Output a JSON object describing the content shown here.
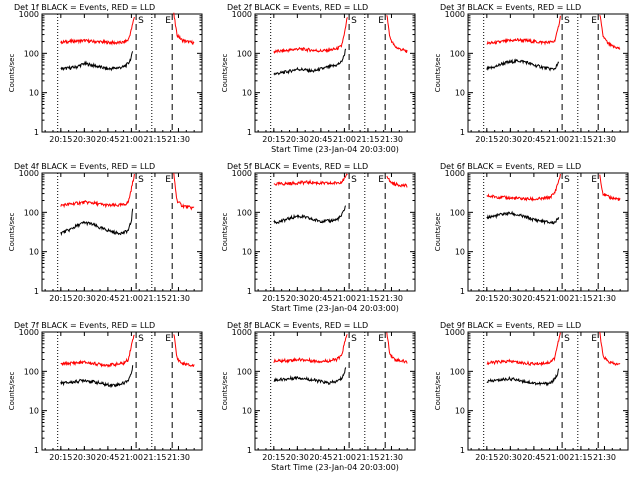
{
  "chart_data": [
    {
      "type": "line",
      "title": "Det 1f BLACK = Events, RED = LLD",
      "ylabel": "Counts/sec",
      "xlabel": "",
      "x_ticklabels": [
        "20:15",
        "20:30",
        "20:45",
        "21:00",
        "21:15",
        "21:30"
      ],
      "y_ticklabels": [
        "1",
        "10",
        "100",
        "1000"
      ],
      "yscale": "log",
      "ylim": [
        1,
        1000
      ],
      "xlim": [
        "20:03:00",
        "21:45:00"
      ],
      "markers": {
        "S": "21:03",
        "E": "21:26"
      },
      "series": [
        {
          "color": "#ff0000",
          "x": [
            "20:15",
            "20:20",
            "20:25",
            "20:30",
            "20:35",
            "20:40",
            "20:45",
            "20:50",
            "20:55",
            "20:58",
            "21:00",
            "21:02"
          ],
          "values": [
            190,
            200,
            205,
            210,
            200,
            195,
            190,
            185,
            190,
            220,
            400,
            900
          ]
        },
        {
          "color": "#ff0000",
          "x": [
            "21:27",
            "21:29",
            "21:32",
            "21:35",
            "21:38",
            "21:40"
          ],
          "values": [
            1000,
            300,
            220,
            200,
            190,
            185
          ]
        },
        {
          "color": "#000000",
          "x": [
            "20:15",
            "20:20",
            "20:25",
            "20:30",
            "20:35",
            "20:40",
            "20:45",
            "20:50",
            "20:55",
            "20:58",
            "21:00",
            "21:01"
          ],
          "values": [
            40,
            42,
            45,
            55,
            50,
            45,
            40,
            42,
            45,
            55,
            80,
            120
          ]
        }
      ]
    },
    {
      "type": "line",
      "title": "Det 2f BLACK = Events, RED = LLD",
      "ylabel": "Counts/sec",
      "xlabel": "Start Time (23-Jan-04 20:03:00)",
      "x_ticklabels": [
        "20:15",
        "20:30",
        "20:45",
        "21:00",
        "21:15",
        "21:30"
      ],
      "y_ticklabels": [
        "1",
        "10",
        "100",
        "1000"
      ],
      "yscale": "log",
      "ylim": [
        1,
        1000
      ],
      "xlim": [
        "20:03:00",
        "21:45:00"
      ],
      "markers": {
        "S": "21:03",
        "E": "21:26"
      },
      "series": [
        {
          "color": "#ff0000",
          "x": [
            "20:15",
            "20:20",
            "20:25",
            "20:30",
            "20:35",
            "20:40",
            "20:45",
            "20:50",
            "20:55",
            "20:58",
            "21:00",
            "21:02"
          ],
          "values": [
            110,
            115,
            120,
            130,
            125,
            120,
            115,
            120,
            130,
            150,
            300,
            900
          ]
        },
        {
          "color": "#ff0000",
          "x": [
            "21:27",
            "21:29",
            "21:32",
            "21:35",
            "21:38",
            "21:40"
          ],
          "values": [
            1000,
            250,
            150,
            130,
            120,
            110
          ]
        },
        {
          "color": "#000000",
          "x": [
            "20:15",
            "20:20",
            "20:25",
            "20:30",
            "20:35",
            "20:40",
            "20:45",
            "20:50",
            "20:55",
            "20:58",
            "21:00",
            "21:01"
          ],
          "values": [
            30,
            32,
            35,
            40,
            38,
            35,
            40,
            45,
            50,
            60,
            90,
            150
          ]
        }
      ]
    },
    {
      "type": "line",
      "title": "Det 3f BLACK = Events, RED = LLD",
      "ylabel": "Counts/sec",
      "xlabel": "",
      "x_ticklabels": [
        "20:15",
        "20:30",
        "20:45",
        "21:00",
        "21:15",
        "21:30"
      ],
      "y_ticklabels": [
        "1",
        "10",
        "100",
        "1000"
      ],
      "yscale": "log",
      "ylim": [
        1,
        1000
      ],
      "xlim": [
        "20:03:00",
        "21:45:00"
      ],
      "markers": {
        "S": "21:03",
        "E": "21:26"
      },
      "series": [
        {
          "color": "#ff0000",
          "x": [
            "20:15",
            "20:20",
            "20:25",
            "20:30",
            "20:35",
            "20:40",
            "20:45",
            "20:50",
            "20:55",
            "20:58",
            "21:00",
            "21:02"
          ],
          "values": [
            180,
            185,
            200,
            210,
            220,
            210,
            200,
            190,
            190,
            200,
            350,
            900
          ]
        },
        {
          "color": "#ff0000",
          "x": [
            "21:27",
            "21:29",
            "21:32",
            "21:35",
            "21:38",
            "21:40"
          ],
          "values": [
            1000,
            280,
            180,
            150,
            140,
            130
          ]
        },
        {
          "color": "#000000",
          "x": [
            "20:15",
            "20:20",
            "20:25",
            "20:30",
            "20:35",
            "20:40",
            "20:45",
            "20:50",
            "20:55",
            "20:58",
            "21:00",
            "21:01"
          ],
          "values": [
            40,
            45,
            55,
            60,
            65,
            60,
            50,
            45,
            40,
            40,
            50,
            60
          ]
        }
      ]
    },
    {
      "type": "line",
      "title": "Det 4f BLACK = Events, RED = LLD",
      "ylabel": "Counts/sec",
      "xlabel": "",
      "x_ticklabels": [
        "20:15",
        "20:30",
        "20:45",
        "21:00",
        "21:15",
        "21:30"
      ],
      "y_ticklabels": [
        "1",
        "10",
        "100",
        "1000"
      ],
      "yscale": "log",
      "ylim": [
        1,
        1000
      ],
      "xlim": [
        "20:03:00",
        "21:45:00"
      ],
      "markers": {
        "S": "21:03",
        "E": "21:26"
      },
      "series": [
        {
          "color": "#ff0000",
          "x": [
            "20:15",
            "20:20",
            "20:25",
            "20:30",
            "20:35",
            "20:40",
            "20:45",
            "20:50",
            "20:55",
            "20:58",
            "21:00",
            "21:02"
          ],
          "values": [
            150,
            160,
            170,
            180,
            175,
            160,
            150,
            150,
            155,
            180,
            400,
            950
          ]
        },
        {
          "color": "#ff0000",
          "x": [
            "21:27",
            "21:29",
            "21:32",
            "21:35",
            "21:38",
            "21:40"
          ],
          "values": [
            950,
            200,
            150,
            140,
            130,
            130
          ]
        },
        {
          "color": "#000000",
          "x": [
            "20:15",
            "20:20",
            "20:25",
            "20:30",
            "20:35",
            "20:40",
            "20:45",
            "20:50",
            "20:55",
            "20:58",
            "21:00",
            "21:01"
          ],
          "values": [
            30,
            35,
            45,
            55,
            50,
            40,
            35,
            30,
            30,
            35,
            60,
            150
          ]
        }
      ]
    },
    {
      "type": "line",
      "title": "Det 5f BLACK = Events, RED = LLD",
      "ylabel": "Counts/sec",
      "xlabel": "Start Time (23-Jan-04 20:03:00)",
      "x_ticklabels": [
        "20:15",
        "20:30",
        "20:45",
        "21:00",
        "21:15",
        "21:30"
      ],
      "y_ticklabels": [
        "1",
        "10",
        "100",
        "1000"
      ],
      "yscale": "log",
      "ylim": [
        1,
        1000
      ],
      "xlim": [
        "20:03:00",
        "21:45:00"
      ],
      "markers": {
        "S": "21:03",
        "E": "21:26"
      },
      "series": [
        {
          "color": "#ff0000",
          "x": [
            "20:15",
            "20:20",
            "20:25",
            "20:30",
            "20:35",
            "20:40",
            "20:45",
            "20:50",
            "20:55",
            "20:58",
            "21:00",
            "21:02"
          ],
          "values": [
            520,
            530,
            540,
            560,
            580,
            570,
            550,
            540,
            560,
            600,
            700,
            900
          ]
        },
        {
          "color": "#ff0000",
          "x": [
            "21:27",
            "21:29",
            "21:32",
            "21:35",
            "21:38",
            "21:40"
          ],
          "values": [
            900,
            600,
            520,
            500,
            480,
            470
          ]
        },
        {
          "color": "#000000",
          "x": [
            "20:15",
            "20:20",
            "20:25",
            "20:30",
            "20:35",
            "20:40",
            "20:45",
            "20:50",
            "20:55",
            "20:58",
            "21:00",
            "21:01"
          ],
          "values": [
            55,
            60,
            70,
            80,
            75,
            65,
            60,
            60,
            65,
            80,
            120,
            160
          ]
        }
      ]
    },
    {
      "type": "line",
      "title": "Det 6f BLACK = Events, RED = LLD",
      "ylabel": "Counts/sec",
      "xlabel": "",
      "x_ticklabels": [
        "20:15",
        "20:30",
        "20:45",
        "21:00",
        "21:15",
        "21:30"
      ],
      "y_ticklabels": [
        "1",
        "10",
        "100",
        "1000"
      ],
      "yscale": "log",
      "ylim": [
        1,
        1000
      ],
      "xlim": [
        "20:03:00",
        "21:45:00"
      ],
      "markers": {
        "S": "21:03",
        "E": "21:26"
      },
      "series": [
        {
          "color": "#ff0000",
          "x": [
            "20:15",
            "20:20",
            "20:25",
            "20:30",
            "20:35",
            "20:40",
            "20:45",
            "20:50",
            "20:55",
            "20:58",
            "21:00",
            "21:02"
          ],
          "values": [
            260,
            250,
            240,
            230,
            225,
            220,
            215,
            220,
            240,
            300,
            500,
            900
          ]
        },
        {
          "color": "#ff0000",
          "x": [
            "21:27",
            "21:29",
            "21:32",
            "21:35",
            "21:38",
            "21:40"
          ],
          "values": [
            900,
            300,
            250,
            230,
            220,
            210
          ]
        },
        {
          "color": "#000000",
          "x": [
            "20:15",
            "20:20",
            "20:25",
            "20:30",
            "20:35",
            "20:40",
            "20:45",
            "20:50",
            "20:55",
            "20:58",
            "21:00",
            "21:01"
          ],
          "values": [
            75,
            80,
            90,
            95,
            85,
            75,
            65,
            60,
            55,
            55,
            65,
            80
          ]
        }
      ]
    },
    {
      "type": "line",
      "title": "Det 7f BLACK = Events, RED = LLD",
      "ylabel": "Counts/sec",
      "xlabel": "",
      "x_ticklabels": [
        "20:15",
        "20:30",
        "20:45",
        "21:00",
        "21:15",
        "21:30"
      ],
      "y_ticklabels": [
        "1",
        "10",
        "100",
        "1000"
      ],
      "yscale": "log",
      "ylim": [
        1,
        1000
      ],
      "xlim": [
        "20:03:00",
        "21:45:00"
      ],
      "markers": {
        "S": "21:03",
        "E": "21:26"
      },
      "series": [
        {
          "color": "#ff0000",
          "x": [
            "20:15",
            "20:20",
            "20:25",
            "20:30",
            "20:35",
            "20:40",
            "20:45",
            "20:50",
            "20:55",
            "20:58",
            "21:00",
            "21:02"
          ],
          "values": [
            150,
            160,
            165,
            170,
            160,
            150,
            145,
            150,
            160,
            200,
            450,
            950
          ]
        },
        {
          "color": "#ff0000",
          "x": [
            "21:27",
            "21:29",
            "21:32",
            "21:35",
            "21:38",
            "21:40"
          ],
          "values": [
            950,
            220,
            160,
            150,
            140,
            140
          ]
        },
        {
          "color": "#000000",
          "x": [
            "20:15",
            "20:20",
            "20:25",
            "20:30",
            "20:35",
            "20:40",
            "20:45",
            "20:50",
            "20:55",
            "20:58",
            "21:00",
            "21:01"
          ],
          "values": [
            50,
            52,
            55,
            60,
            55,
            50,
            45,
            45,
            50,
            60,
            90,
            140
          ]
        }
      ]
    },
    {
      "type": "line",
      "title": "Det 8f BLACK = Events, RED = LLD",
      "ylabel": "Counts/sec",
      "xlabel": "Start Time (23-Jan-04 20:03:00)",
      "x_ticklabels": [
        "20:15",
        "20:30",
        "20:45",
        "21:00",
        "21:15",
        "21:30"
      ],
      "y_ticklabels": [
        "1",
        "10",
        "100",
        "1000"
      ],
      "yscale": "log",
      "ylim": [
        1,
        1000
      ],
      "xlim": [
        "20:03:00",
        "21:45:00"
      ],
      "markers": {
        "S": "21:03",
        "E": "21:26"
      },
      "series": [
        {
          "color": "#ff0000",
          "x": [
            "20:15",
            "20:20",
            "20:25",
            "20:30",
            "20:35",
            "20:40",
            "20:45",
            "20:50",
            "20:55",
            "20:58",
            "21:00",
            "21:02"
          ],
          "values": [
            180,
            185,
            190,
            200,
            195,
            185,
            180,
            185,
            200,
            240,
            500,
            950
          ]
        },
        {
          "color": "#ff0000",
          "x": [
            "21:27",
            "21:29",
            "21:32",
            "21:35",
            "21:38",
            "21:40"
          ],
          "values": [
            950,
            280,
            200,
            190,
            180,
            170
          ]
        },
        {
          "color": "#000000",
          "x": [
            "20:15",
            "20:20",
            "20:25",
            "20:30",
            "20:35",
            "20:40",
            "20:45",
            "20:50",
            "20:55",
            "20:58",
            "21:00",
            "21:01"
          ],
          "values": [
            60,
            62,
            65,
            70,
            65,
            60,
            55,
            50,
            55,
            65,
            90,
            130
          ]
        }
      ]
    },
    {
      "type": "line",
      "title": "Det 9f BLACK = Events, RED = LLD",
      "ylabel": "Counts/sec",
      "xlabel": "",
      "x_ticklabels": [
        "20:15",
        "20:30",
        "20:45",
        "21:00",
        "21:15",
        "21:30"
      ],
      "y_ticklabels": [
        "1",
        "10",
        "100",
        "1000"
      ],
      "yscale": "log",
      "ylim": [
        1,
        1000
      ],
      "xlim": [
        "20:03:00",
        "21:45:00"
      ],
      "markers": {
        "S": "21:03",
        "E": "21:26"
      },
      "series": [
        {
          "color": "#ff0000",
          "x": [
            "20:15",
            "20:20",
            "20:25",
            "20:30",
            "20:35",
            "20:40",
            "20:45",
            "20:50",
            "20:55",
            "20:58",
            "21:00",
            "21:02"
          ],
          "values": [
            160,
            170,
            175,
            180,
            170,
            160,
            155,
            160,
            170,
            210,
            450,
            950
          ]
        },
        {
          "color": "#ff0000",
          "x": [
            "21:27",
            "21:29",
            "21:32",
            "21:35",
            "21:38",
            "21:40"
          ],
          "values": [
            950,
            250,
            180,
            160,
            150,
            150
          ]
        },
        {
          "color": "#000000",
          "x": [
            "20:15",
            "20:20",
            "20:25",
            "20:30",
            "20:35",
            "20:40",
            "20:45",
            "20:50",
            "20:55",
            "20:58",
            "21:00",
            "21:01"
          ],
          "values": [
            55,
            58,
            62,
            65,
            60,
            55,
            50,
            48,
            50,
            60,
            85,
            130
          ]
        }
      ]
    }
  ]
}
